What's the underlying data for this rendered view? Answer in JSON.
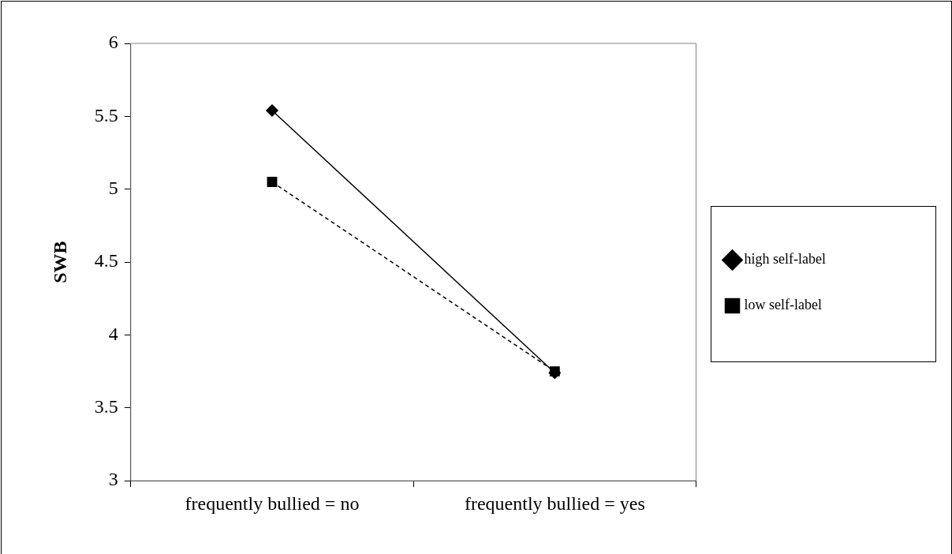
{
  "chart_data": {
    "type": "line",
    "ylabel": "SWB",
    "categories": [
      "frequently bullied = no",
      "frequently bullied = yes"
    ],
    "series": [
      {
        "name": "high self-label",
        "color": "#000000",
        "values": [
          5.54,
          3.74
        ],
        "marker": "diamond",
        "line_style": "solid"
      },
      {
        "name": "low self-label",
        "color": "#000000",
        "values": [
          5.05,
          3.75
        ],
        "marker": "square",
        "line_style": "dashed"
      }
    ],
    "ylim": [
      3,
      6
    ],
    "yticks": [
      3,
      3.5,
      4,
      4.5,
      5,
      5.5,
      6
    ],
    "grid": false,
    "legend": "right"
  }
}
